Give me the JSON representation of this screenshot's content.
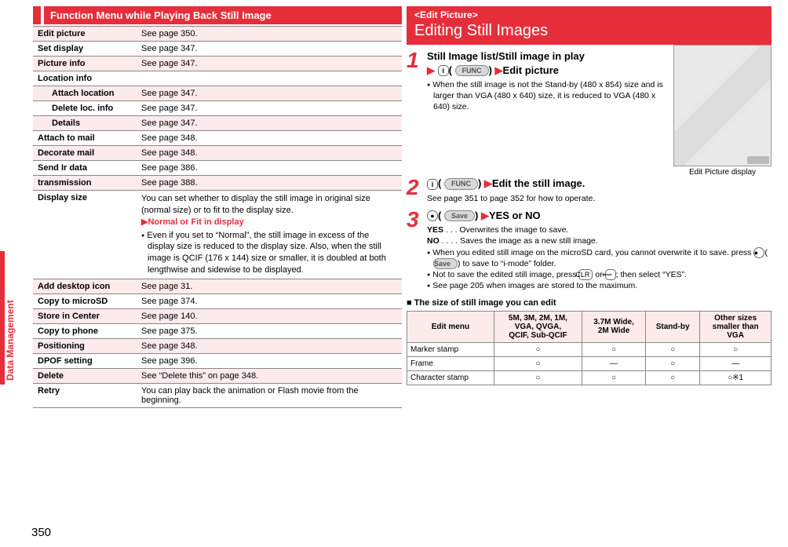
{
  "page_number": "350",
  "side_tab": "Data Management",
  "left": {
    "header": "Function Menu while Playing Back Still Image",
    "rows": [
      {
        "label": "Edit picture",
        "desc": "See page 350.",
        "shade": true
      },
      {
        "label": "Set display",
        "desc": "See page 347.",
        "shade": false
      },
      {
        "label": "Picture info",
        "desc": "See page 347.",
        "shade": true
      },
      {
        "label": "Location info",
        "desc": "",
        "shade": false
      },
      {
        "label": "Attach location",
        "desc": "See page 347.",
        "shade": true,
        "sub": true
      },
      {
        "label": "Delete loc. info",
        "desc": "See page 347.",
        "shade": false,
        "sub": true
      },
      {
        "label": "Details",
        "desc": "See page 347.",
        "shade": true,
        "sub": true
      },
      {
        "label": "Attach to mail",
        "desc": "See page 348.",
        "shade": false
      },
      {
        "label": "Decorate mail",
        "desc": "See page 348.",
        "shade": true
      },
      {
        "label": "Send Ir data",
        "desc": "See page 386.",
        "shade": false
      },
      {
        "label": "     transmission",
        "desc": "See page 388.",
        "shade": true,
        "icon": "ic-trans"
      },
      {
        "label": "Display size",
        "desc_block": true,
        "shade": false
      },
      {
        "label": "Add desktop icon",
        "desc": "See page 31.",
        "shade": true
      },
      {
        "label": "Copy to microSD",
        "desc": "See page 374.",
        "shade": false
      },
      {
        "label": "Store in Center",
        "desc": "See page 140.",
        "shade": true
      },
      {
        "label": "Copy to phone",
        "desc": "See page 375.",
        "shade": false
      },
      {
        "label": "Positioning",
        "desc": "See page 348.",
        "shade": true
      },
      {
        "label": "DPOF setting",
        "desc": "See page 396.",
        "shade": false
      },
      {
        "label": "Delete",
        "desc": "See “Delete this” on page 348.",
        "shade": true
      },
      {
        "label": "Retry",
        "desc": "You can play back the animation or Flash movie from the beginning.",
        "shade": false
      }
    ],
    "display_size_desc": {
      "line1": "You can set whether to display the still image in original size (normal size) or to fit to the display size.",
      "choice": "Normal or Fit in display",
      "bullet": "Even if you set to “Normal”, the still image in excess of the display size is reduced to the display size. Also, when the still image is QCIF (176 x 144) size or smaller, it is doubled at both lengthwise and sidewise to be displayed."
    }
  },
  "right": {
    "breadcrumb": "<Edit Picture>",
    "title": "Editing Still Images",
    "photo_caption": "Edit Picture display",
    "step1": {
      "head_l1": "Still Image list/Still image in play",
      "head_l2_prefix": "▶",
      "head_l2_key": "i",
      "head_l2_pill": "FUNC",
      "head_l2_suffix": "▶Edit picture",
      "note": "When the still image is not the Stand-by (480 x 854) size and is larger than VGA (480 x 640) size, it is reduced to VGA (480 x 640) size."
    },
    "step2": {
      "head_key": "i",
      "head_pill": "FUNC",
      "head_suffix": "▶Edit the still image.",
      "note": "See page 351 to page 352 for how to operate."
    },
    "step3": {
      "head_pill": "Save",
      "head_suffix": "▶YES or NO",
      "yes": "YES . . . Overwrites the image to save.",
      "no": "NO . . . . Saves the image as a new still image.",
      "b1": "When you edited still image on the microSD card, you cannot overwrite it to save. press ● (       ) to save to “i-mode” folder.",
      "b1_pill": "Save",
      "b2": "Not to save the edited still image, press ",
      "b2_key1": "CLR",
      "b2_mid": " or ",
      "b2_key2": "⟵",
      "b2_end": "; then select “YES”.",
      "b3": "See page 205 when images are stored to the maximum."
    },
    "size_section_label": "The size of still image you can edit",
    "size_table": {
      "headers": [
        "Edit menu",
        "5M, 3M, 2M, 1M, VGA, QVGA, QCIF, Sub-QCIF",
        "3.7M Wide, 2M Wide",
        "Stand-by",
        "Other sizes smaller than VGA"
      ],
      "rows": [
        {
          "name": "Marker stamp",
          "c": [
            "○",
            "○",
            "○",
            "○"
          ]
        },
        {
          "name": "Frame",
          "c": [
            "○",
            "—",
            "○",
            "—"
          ]
        },
        {
          "name": "Character stamp",
          "c": [
            "○",
            "○",
            "○",
            "○※1"
          ]
        }
      ]
    }
  },
  "colors": {
    "accent": "#e62e3a",
    "shade": "#fdebeb"
  }
}
